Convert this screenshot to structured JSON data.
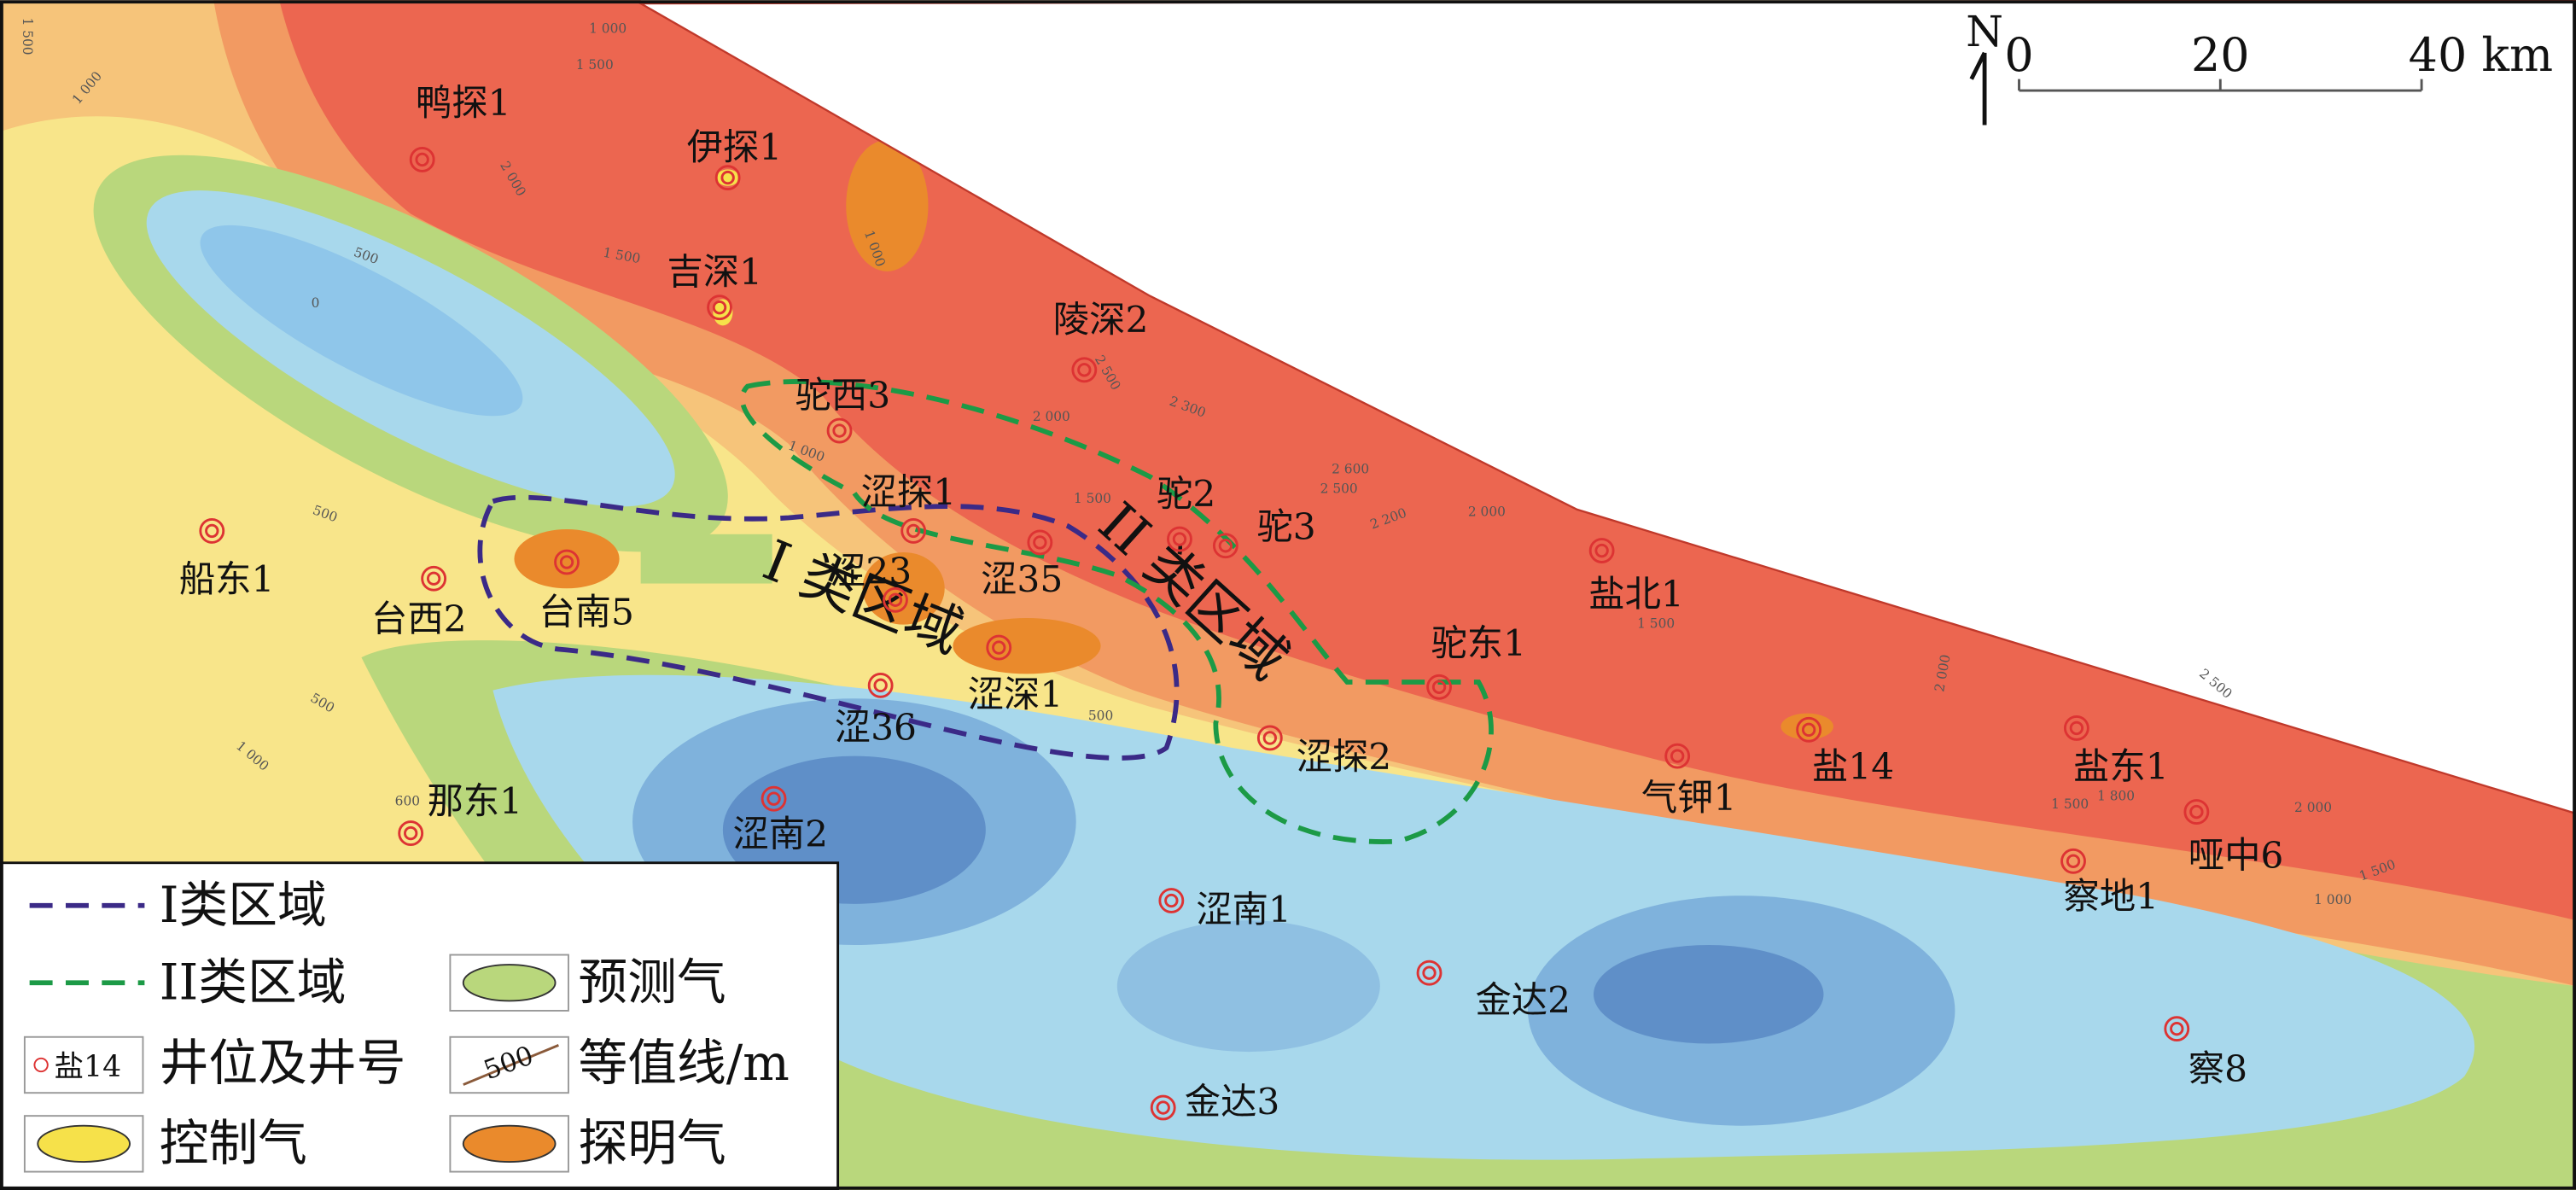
{
  "north": "N",
  "scale_bar": {
    "ticks": [
      0,
      20,
      {
        "value": 40,
        "label": "40 km"
      }
    ]
  },
  "wells": [
    "鸭探1",
    "伊探1",
    "吉深1",
    "陵深2",
    "驼西3",
    "涩探1",
    "涩23",
    "涩35",
    "驼2",
    "驼3",
    "船东1",
    "台西2",
    "台南5",
    "涩深1",
    "涩36",
    "那东1",
    "涩南2",
    "驼东1",
    "涩探2",
    "盐北1",
    "气钾1",
    "盐14",
    "盐东1",
    "哑中6",
    "察地1",
    "涩南1",
    "金达2",
    "金达3",
    "察8"
  ],
  "regions": [
    "I 类区域",
    "II 类区域"
  ],
  "contour_labels": [
    "1 000",
    "1 500",
    "1 500",
    "1 000",
    "2 000",
    "500",
    "1 500",
    "0",
    "1 000",
    "2 500",
    "2 300",
    "2 000",
    "1 000",
    "500",
    "1 500",
    "2 600",
    "2 500",
    "2 200",
    "2 000",
    "1 500",
    "500",
    "1 000",
    "600",
    "500",
    "2 000",
    "2 500",
    "1 800",
    "1 500",
    "2 000",
    "1 500",
    "1 000"
  ],
  "legend": {
    "items": [
      "I类区域",
      "II类区域",
      "预测气",
      "井位及井号",
      "等值线/m",
      "控制气",
      "探明气"
    ],
    "well_icon": "盐14",
    "contour_icon": "500"
  }
}
